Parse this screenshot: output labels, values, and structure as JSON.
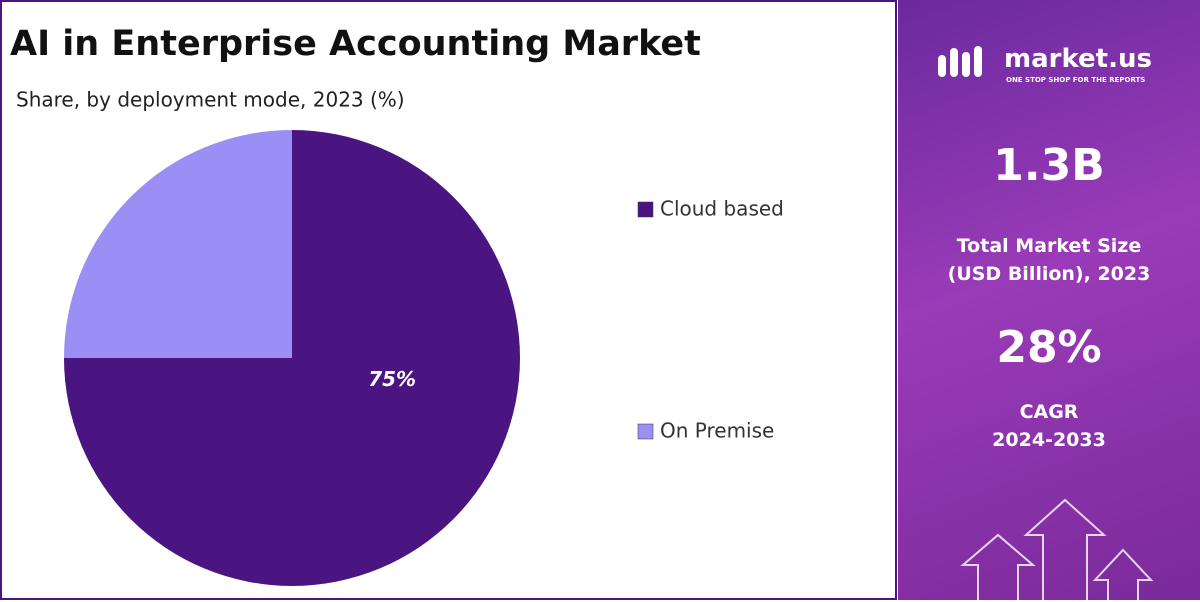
{
  "chart_data": {
    "type": "pie",
    "title": "AI in Enterprise Accounting Market",
    "subtitle": "Share, by deployment mode, 2023 (%)",
    "categories": [
      "Cloud based",
      "On Premise"
    ],
    "values": [
      75,
      25
    ],
    "value_labels": [
      "75%",
      null
    ],
    "colors": [
      "#4a1580",
      "#9b8ff5"
    ]
  },
  "panel": {
    "brand": "market.us",
    "tagline": "ONE STOP SHOP FOR THE REPORTS",
    "stat1_value": "1.3B",
    "stat1_label_line1": "Total Market Size",
    "stat1_label_line2": "(USD Billion), 2023",
    "stat2_value": "28%",
    "stat2_label_line1": "CAGR",
    "stat2_label_line2": "2024-2033"
  }
}
